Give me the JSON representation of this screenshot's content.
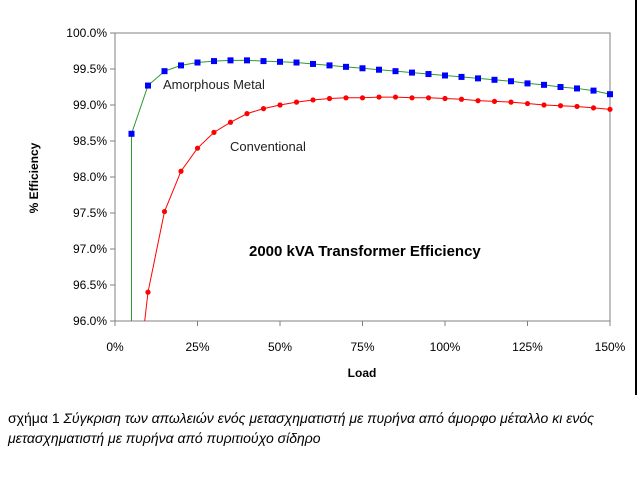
{
  "chart_data": {
    "type": "line",
    "title": "2000 kVA Transformer Efficiency",
    "xlabel": "Load",
    "ylabel": "% Efficiency",
    "xlim": [
      0,
      150
    ],
    "ylim": [
      96.0,
      100.0
    ],
    "x_ticks": [
      "0%",
      "25%",
      "50%",
      "75%",
      "100%",
      "125%",
      "150%"
    ],
    "x_tick_values": [
      0,
      25,
      50,
      75,
      100,
      125,
      150
    ],
    "y_ticks": [
      "96.0%",
      "96.5%",
      "97.0%",
      "97.5%",
      "98.0%",
      "98.5%",
      "99.0%",
      "99.5%",
      "100.0%"
    ],
    "y_tick_values": [
      96.0,
      96.5,
      97.0,
      97.5,
      98.0,
      98.5,
      99.0,
      99.5,
      100.0
    ],
    "grid": false,
    "series": [
      {
        "name": "Amorphous Metal",
        "color": "#2d9b2d",
        "marker_color": "#0000ff",
        "marker": "square",
        "x": [
          5,
          10,
          15,
          20,
          25,
          30,
          35,
          40,
          45,
          50,
          55,
          60,
          65,
          70,
          75,
          80,
          85,
          90,
          95,
          100,
          105,
          110,
          115,
          120,
          125,
          130,
          135,
          140,
          145,
          150
        ],
        "y": [
          98.6,
          99.27,
          99.47,
          99.55,
          99.59,
          99.61,
          99.62,
          99.62,
          99.61,
          99.6,
          99.59,
          99.57,
          99.55,
          99.53,
          99.51,
          99.49,
          99.47,
          99.45,
          99.43,
          99.41,
          99.39,
          99.37,
          99.35,
          99.33,
          99.3,
          99.28,
          99.25,
          99.23,
          99.2,
          99.15
        ],
        "descent_to_x": 5
      },
      {
        "name": "Conventional",
        "color": "#ff0000",
        "marker_color": "#ff0000",
        "marker": "circle",
        "x": [
          10,
          15,
          20,
          25,
          30,
          35,
          40,
          45,
          50,
          55,
          60,
          65,
          70,
          75,
          80,
          85,
          90,
          95,
          100,
          105,
          110,
          115,
          120,
          125,
          130,
          135,
          140,
          145,
          150
        ],
        "y": [
          96.4,
          97.52,
          98.08,
          98.4,
          98.62,
          98.76,
          98.88,
          98.95,
          99.0,
          99.04,
          99.07,
          99.09,
          99.1,
          99.1,
          99.11,
          99.11,
          99.1,
          99.1,
          99.09,
          99.08,
          99.06,
          99.05,
          99.04,
          99.02,
          99.0,
          98.99,
          98.98,
          98.96,
          98.94
        ],
        "descent_to_x": 9
      }
    ]
  },
  "caption": {
    "label": "σχήμα 1",
    "text": "Σύγκριση των απωλειών ενός μετασχηματιστή με πυρήνα από άμορφο μέταλλο κι ενός μετασχηματιστή με πυρήνα από πυριτιούχο σίδηρο"
  }
}
